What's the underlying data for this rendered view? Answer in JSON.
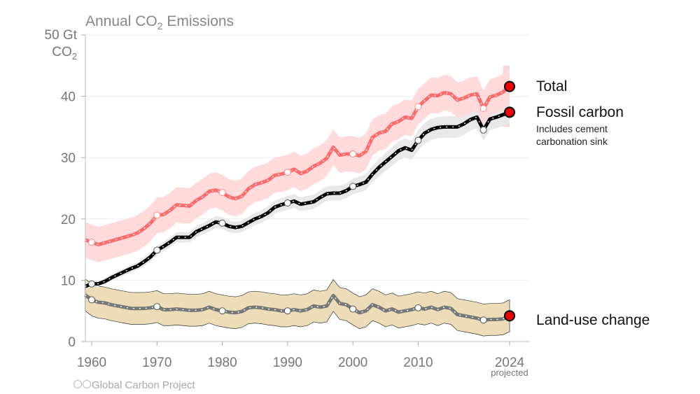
{
  "chart_data": {
    "type": "line",
    "title": "Annual CO",
    "title_sub": "2",
    "title_tail": " Emissions",
    "ylabel_line1": "50 Gt",
    "ylabel_line2": "CO",
    "ylabel_sub": "2",
    "ylim": [
      0,
      50
    ],
    "xlim": [
      1959,
      2024
    ],
    "yticks": [
      0,
      10,
      20,
      30,
      40
    ],
    "xticks": [
      1960,
      1970,
      1980,
      1990,
      2000,
      2010,
      2024
    ],
    "xtick_note": "projected",
    "grid": true,
    "x": [
      1959,
      1960,
      1961,
      1962,
      1963,
      1964,
      1965,
      1966,
      1967,
      1968,
      1969,
      1970,
      1971,
      1972,
      1973,
      1974,
      1975,
      1976,
      1977,
      1978,
      1979,
      1980,
      1981,
      1982,
      1983,
      1984,
      1985,
      1986,
      1987,
      1988,
      1989,
      1990,
      1991,
      1992,
      1993,
      1994,
      1995,
      1996,
      1997,
      1998,
      1999,
      2000,
      2001,
      2002,
      2003,
      2004,
      2005,
      2006,
      2007,
      2008,
      2009,
      2010,
      2011,
      2012,
      2013,
      2014,
      2015,
      2016,
      2017,
      2018,
      2019,
      2020,
      2021,
      2022,
      2023,
      2024
    ],
    "series": [
      {
        "name": "Total",
        "color": "#ff6b6b",
        "band_color": "#ffdada",
        "uncertainty": 2.9,
        "values": [
          16.6,
          16.2,
          15.8,
          16.1,
          16.4,
          16.7,
          17.0,
          17.3,
          17.7,
          18.4,
          19.3,
          20.6,
          20.7,
          21.4,
          22.3,
          22.2,
          22.1,
          23.0,
          23.6,
          24.5,
          24.7,
          24.3,
          23.6,
          23.3,
          23.7,
          24.9,
          25.6,
          25.9,
          26.3,
          27.1,
          27.3,
          27.6,
          28.1,
          27.4,
          27.8,
          28.6,
          29.1,
          29.9,
          31.7,
          30.4,
          30.6,
          30.6,
          30.3,
          31.0,
          33.3,
          34.0,
          34.3,
          35.5,
          35.9,
          36.6,
          36.4,
          38.3,
          39.3,
          40.2,
          40.1,
          40.6,
          40.4,
          39.4,
          39.7,
          40.2,
          40.4,
          38.0,
          39.9,
          40.2,
          40.7,
          41.6
        ]
      },
      {
        "name": "Fossil carbon",
        "note_line1": "Includes cement",
        "note_line2": "carbonation sink",
        "color": "#000000",
        "band_color": "#e8e8e8",
        "uncertainty_pct": 5,
        "values": [
          9.0,
          9.4,
          9.4,
          9.8,
          10.4,
          10.9,
          11.4,
          11.9,
          12.3,
          13.0,
          13.8,
          14.9,
          15.5,
          16.2,
          17.0,
          17.0,
          17.0,
          17.9,
          18.4,
          18.9,
          19.5,
          19.3,
          18.8,
          18.6,
          18.8,
          19.4,
          20.0,
          20.4,
          21.0,
          21.9,
          22.3,
          22.6,
          22.9,
          22.4,
          22.6,
          22.8,
          23.5,
          24.1,
          24.2,
          24.2,
          24.6,
          25.3,
          25.6,
          26.0,
          27.3,
          28.4,
          29.3,
          30.2,
          31.1,
          31.6,
          31.2,
          32.8,
          34.0,
          34.6,
          34.9,
          35.0,
          35.0,
          35.0,
          35.5,
          36.2,
          36.6,
          34.5,
          36.3,
          36.6,
          37.0,
          37.4
        ]
      },
      {
        "name": "Land-use change",
        "color": "#777777",
        "band_color": "#ecdcb8",
        "uncertainty": 2.6,
        "values": [
          7.6,
          6.8,
          6.4,
          6.3,
          6.0,
          5.8,
          5.6,
          5.4,
          5.4,
          5.4,
          5.5,
          5.7,
          5.2,
          5.2,
          5.3,
          5.2,
          5.1,
          5.1,
          5.2,
          5.6,
          5.2,
          5.0,
          4.8,
          4.7,
          4.9,
          5.5,
          5.6,
          5.5,
          5.3,
          5.2,
          5.0,
          5.0,
          5.2,
          5.0,
          5.2,
          5.8,
          5.6,
          5.8,
          7.5,
          6.2,
          6.0,
          5.3,
          4.7,
          5.0,
          6.0,
          5.6,
          5.0,
          5.3,
          4.8,
          5.0,
          5.2,
          5.5,
          5.3,
          5.6,
          5.2,
          5.6,
          5.4,
          4.4,
          4.2,
          4.0,
          3.8,
          3.5,
          3.6,
          3.6,
          3.7,
          4.2
        ]
      }
    ],
    "marker_years": [
      1960,
      1970,
      1980,
      1990,
      2000,
      2010,
      2020
    ],
    "projection_marker_color": "#ee0000"
  },
  "credit": "Global Carbon Project",
  "credit_icons": [
    "cc-icon",
    "by-icon"
  ]
}
